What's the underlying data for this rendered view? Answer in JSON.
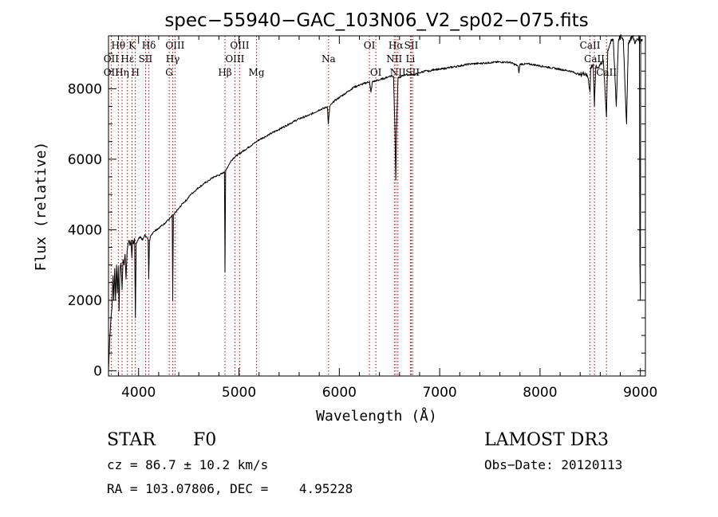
{
  "chart_data": {
    "type": "line",
    "title": "spec−55940−GAC_103N06_V2_sp02−075.fits",
    "xlabel": "Wavelength (Å)",
    "ylabel": "Flux (relative)",
    "xlim": [
      3700,
      9050
    ],
    "ylim": [
      -150,
      9500
    ],
    "xticks": [
      4000,
      5000,
      6000,
      7000,
      8000,
      9000
    ],
    "yticks": [
      0,
      2000,
      4000,
      6000,
      8000
    ],
    "grid": false,
    "series": [
      {
        "name": "flux",
        "points": [
          [
            3700,
            0
          ],
          [
            3712,
            900
          ],
          [
            3725,
            1500
          ],
          [
            3735,
            1800
          ],
          [
            3745,
            2700
          ],
          [
            3752,
            2000
          ],
          [
            3762,
            2900
          ],
          [
            3770,
            2000
          ],
          [
            3780,
            3000
          ],
          [
            3788,
            2200
          ],
          [
            3798,
            2950
          ],
          [
            3805,
            1700
          ],
          [
            3815,
            2900
          ],
          [
            3825,
            3050
          ],
          [
            3835,
            2300
          ],
          [
            3845,
            3150
          ],
          [
            3855,
            3000
          ],
          [
            3865,
            3300
          ],
          [
            3875,
            2600
          ],
          [
            3885,
            3400
          ],
          [
            3895,
            3600
          ],
          [
            3905,
            3700
          ],
          [
            3915,
            3550
          ],
          [
            3925,
            3700
          ],
          [
            3933,
            3200
          ],
          [
            3940,
            3700
          ],
          [
            3950,
            3600
          ],
          [
            3960,
            3750
          ],
          [
            3968,
            1500
          ],
          [
            3975,
            3600
          ],
          [
            3990,
            3700
          ],
          [
            4000,
            3750
          ],
          [
            4020,
            3800
          ],
          [
            4040,
            3700
          ],
          [
            4060,
            3850
          ],
          [
            4080,
            3800
          ],
          [
            4095,
            3700
          ],
          [
            4101,
            2600
          ],
          [
            4108,
            3700
          ],
          [
            4125,
            3850
          ],
          [
            4150,
            3950
          ],
          [
            4175,
            4000
          ],
          [
            4200,
            4050
          ],
          [
            4225,
            4100
          ],
          [
            4250,
            4150
          ],
          [
            4280,
            4250
          ],
          [
            4300,
            4280
          ],
          [
            4320,
            4350
          ],
          [
            4335,
            4400
          ],
          [
            4340,
            2000
          ],
          [
            4346,
            4400
          ],
          [
            4370,
            4500
          ],
          [
            4400,
            4600
          ],
          [
            4440,
            4750
          ],
          [
            4480,
            4850
          ],
          [
            4520,
            5000
          ],
          [
            4560,
            5100
          ],
          [
            4600,
            5200
          ],
          [
            4650,
            5300
          ],
          [
            4700,
            5400
          ],
          [
            4750,
            5500
          ],
          [
            4800,
            5550
          ],
          [
            4840,
            5600
          ],
          [
            4855,
            5650
          ],
          [
            4861,
            2800
          ],
          [
            4867,
            5650
          ],
          [
            4880,
            5750
          ],
          [
            4900,
            5850
          ],
          [
            4920,
            5950
          ],
          [
            4950,
            6050
          ],
          [
            5000,
            6150
          ],
          [
            5050,
            6250
          ],
          [
            5100,
            6350
          ],
          [
            5150,
            6450
          ],
          [
            5200,
            6550
          ],
          [
            5300,
            6700
          ],
          [
            5400,
            6850
          ],
          [
            5500,
            7000
          ],
          [
            5600,
            7150
          ],
          [
            5700,
            7250
          ],
          [
            5800,
            7400
          ],
          [
            5850,
            7450
          ],
          [
            5880,
            7500
          ],
          [
            5890,
            7000
          ],
          [
            5896,
            7200
          ],
          [
            5905,
            7500
          ],
          [
            5950,
            7650
          ],
          [
            6000,
            7750
          ],
          [
            6050,
            7850
          ],
          [
            6100,
            7950
          ],
          [
            6150,
            8050
          ],
          [
            6200,
            8100
          ],
          [
            6250,
            8150
          ],
          [
            6300,
            8200
          ],
          [
            6315,
            7900
          ],
          [
            6330,
            8200
          ],
          [
            6400,
            8250
          ],
          [
            6450,
            8300
          ],
          [
            6500,
            8350
          ],
          [
            6540,
            8350
          ],
          [
            6555,
            6800
          ],
          [
            6563,
            5400
          ],
          [
            6570,
            6800
          ],
          [
            6585,
            8300
          ],
          [
            6620,
            8350
          ],
          [
            6650,
            8400
          ],
          [
            6700,
            8400
          ],
          [
            6750,
            8400
          ],
          [
            6800,
            8450
          ],
          [
            6850,
            8500
          ],
          [
            6900,
            8500
          ],
          [
            6950,
            8550
          ],
          [
            7000,
            8550
          ],
          [
            7100,
            8600
          ],
          [
            7200,
            8650
          ],
          [
            7300,
            8700
          ],
          [
            7400,
            8720
          ],
          [
            7500,
            8740
          ],
          [
            7600,
            8760
          ],
          [
            7700,
            8750
          ],
          [
            7780,
            8650
          ],
          [
            7790,
            8450
          ],
          [
            7800,
            8700
          ],
          [
            7900,
            8700
          ],
          [
            8000,
            8650
          ],
          [
            8100,
            8600
          ],
          [
            8200,
            8550
          ],
          [
            8300,
            8500
          ],
          [
            8400,
            8400
          ],
          [
            8450,
            8450
          ],
          [
            8480,
            8300
          ],
          [
            8498,
            7900
          ],
          [
            8505,
            8600
          ],
          [
            8530,
            8700
          ],
          [
            8542,
            7500
          ],
          [
            8555,
            8600
          ],
          [
            8580,
            8600
          ],
          [
            8600,
            8700
          ],
          [
            8630,
            8800
          ],
          [
            8662,
            7200
          ],
          [
            8675,
            9100
          ],
          [
            8700,
            9300
          ],
          [
            8730,
            9400
          ],
          [
            8760,
            7500
          ],
          [
            8780,
            9300
          ],
          [
            8800,
            9500
          ],
          [
            8830,
            9400
          ],
          [
            8862,
            7000
          ],
          [
            8880,
            9300
          ],
          [
            8900,
            9400
          ],
          [
            8920,
            9500
          ],
          [
            8950,
            9300
          ],
          [
            8970,
            9400
          ],
          [
            8990,
            9450
          ],
          [
            8995,
            3000
          ],
          [
            9000,
            2000
          ],
          [
            9003,
            9400
          ],
          [
            9020,
            9400
          ]
        ]
      }
    ],
    "spectral_lines": [
      {
        "label": "Hθ",
        "x": 3798,
        "row": 0
      },
      {
        "label": "OII",
        "x": 3727,
        "row": 1
      },
      {
        "label": "OII",
        "x": 3727,
        "row": 2
      },
      {
        "label": "Hε",
        "x": 3889,
        "row": 1
      },
      {
        "label": "Hη",
        "x": 3835,
        "row": 2
      },
      {
        "label": "K",
        "x": 3934,
        "row": 0
      },
      {
        "label": "SII",
        "x": 4069,
        "row": 1
      },
      {
        "label": "H",
        "x": 3968,
        "row": 2
      },
      {
        "label": "Hδ",
        "x": 4102,
        "row": 0
      },
      {
        "label": "OIII",
        "x": 4363,
        "row": 0
      },
      {
        "label": "Hγ",
        "x": 4340,
        "row": 1
      },
      {
        "label": "G",
        "x": 4305,
        "row": 2
      },
      {
        "label": "OIII",
        "x": 5007,
        "row": 0
      },
      {
        "label": "OIII",
        "x": 4959,
        "row": 1
      },
      {
        "label": "Hβ",
        "x": 4861,
        "row": 2
      },
      {
        "label": "Mg",
        "x": 5175,
        "row": 2
      },
      {
        "label": "Na",
        "x": 5893,
        "row": 1
      },
      {
        "label": "OI",
        "x": 6300,
        "row": 0
      },
      {
        "label": "OI",
        "x": 6364,
        "row": 2
      },
      {
        "label": "Hα",
        "x": 6563,
        "row": 0
      },
      {
        "label": "SII",
        "x": 6717,
        "row": 0
      },
      {
        "label": "NII",
        "x": 6548,
        "row": 1
      },
      {
        "label": "Li",
        "x": 6708,
        "row": 1
      },
      {
        "label": "NII",
        "x": 6584,
        "row": 2
      },
      {
        "label": "SII",
        "x": 6731,
        "row": 2
      },
      {
        "label": "CaII",
        "x": 8498,
        "row": 0
      },
      {
        "label": "CaII",
        "x": 8542,
        "row": 1
      },
      {
        "label": "CaII",
        "x": 8662,
        "row": 2
      }
    ],
    "marker_lines": [
      3727,
      3798,
      3835,
      3889,
      3934,
      3968,
      4069,
      4102,
      4305,
      4340,
      4363,
      4861,
      4959,
      5007,
      5175,
      5893,
      6300,
      6364,
      6548,
      6563,
      6584,
      6708,
      6717,
      6731,
      8498,
      8542,
      8662
    ]
  },
  "info": {
    "object_class": "STAR",
    "subclass": "F0",
    "survey": "LAMOST DR3",
    "redshift": "cz = 86.7 ± 10.2 km/s",
    "obs_date": "Obs−Date: 20120113",
    "coords": "RA = 103.07806, DEC =    4.95228"
  },
  "colors": {
    "spectrum": "#000000",
    "marker": "#c00000",
    "axes": "#000000"
  }
}
